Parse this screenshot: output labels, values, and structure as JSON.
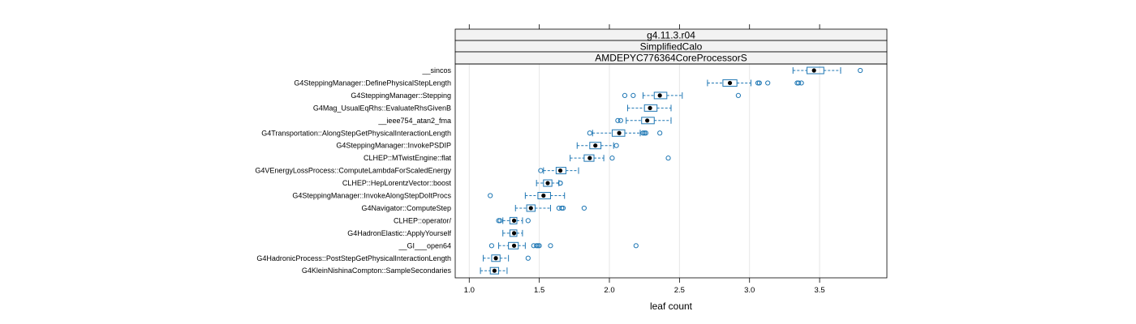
{
  "chart_data": {
    "type": "boxplot",
    "xlabel": "leaf count",
    "xlim": [
      0.9,
      3.98
    ],
    "x_ticks": [
      "1.0",
      "1.5",
      "2.0",
      "2.5",
      "3.0",
      "3.5"
    ],
    "x_tick_values": [
      1.0,
      1.5,
      2.0,
      2.5,
      3.0,
      3.5
    ],
    "grid": "vertical",
    "strips": [
      "g4.11.3.r04",
      "SimplifiedCalo",
      "AMDEPYC776364CoreProcessorS"
    ],
    "colors": {
      "box": "#1f77b4",
      "strip_fill": "#f2f2f2",
      "grid": "#e6e6e6",
      "median_dot": "#000000"
    },
    "categories": [
      "__sincos",
      "G4SteppingManager::DefinePhysicalStepLength",
      "G4SteppingManager::Stepping",
      "G4Mag_UsualEqRhs::EvaluateRhsGivenB",
      "__ieee754_atan2_fma",
      "G4Transportation::AlongStepGetPhysicalInteractionLength",
      "G4SteppingManager::InvokePSDIP",
      "CLHEP::MTwistEngine::flat",
      "G4VEnergyLossProcess::ComputeLambdaForScaledEnergy",
      "CLHEP::HepLorentzVector::boost",
      "G4SteppingManager::InvokeAlongStepDoItProcs",
      "G4Navigator::ComputeStep",
      "CLHEP::operator/",
      "G4HadronElastic::ApplyYourself",
      "__GI___open64",
      "G4HadronicProcess::PostStepGetPhysicalInteractionLength",
      "G4KleinNishinaCompton::SampleSecondaries"
    ],
    "boxes": [
      {
        "whisker_low": 3.31,
        "q1": 3.41,
        "median": 3.46,
        "q3": 3.53,
        "whisker_high": 3.65,
        "outliers": [
          3.79
        ]
      },
      {
        "whisker_low": 2.7,
        "q1": 2.81,
        "median": 2.86,
        "q3": 2.91,
        "whisker_high": 3.01,
        "outliers": [
          3.06,
          3.07,
          3.13,
          3.34,
          3.35,
          3.37
        ]
      },
      {
        "whisker_low": 2.24,
        "q1": 2.32,
        "median": 2.36,
        "q3": 2.41,
        "whisker_high": 2.52,
        "outliers": [
          2.11,
          2.17,
          2.92
        ]
      },
      {
        "whisker_low": 2.13,
        "q1": 2.25,
        "median": 2.29,
        "q3": 2.34,
        "whisker_high": 2.44,
        "outliers": []
      },
      {
        "whisker_low": 2.12,
        "q1": 2.23,
        "median": 2.27,
        "q3": 2.32,
        "whisker_high": 2.44,
        "outliers": [
          2.06,
          2.08
        ]
      },
      {
        "whisker_low": 1.88,
        "q1": 2.02,
        "median": 2.07,
        "q3": 2.11,
        "whisker_high": 2.22,
        "outliers": [
          1.86,
          2.24,
          2.25,
          2.26,
          2.36
        ]
      },
      {
        "whisker_low": 1.77,
        "q1": 1.86,
        "median": 1.9,
        "q3": 1.94,
        "whisker_high": 2.03,
        "outliers": [
          2.05
        ]
      },
      {
        "whisker_low": 1.72,
        "q1": 1.82,
        "median": 1.86,
        "q3": 1.89,
        "whisker_high": 1.96,
        "outliers": [
          2.02,
          2.42
        ]
      },
      {
        "whisker_low": 1.53,
        "q1": 1.62,
        "median": 1.65,
        "q3": 1.69,
        "whisker_high": 1.78,
        "outliers": [
          1.51
        ]
      },
      {
        "whisker_low": 1.48,
        "q1": 1.53,
        "median": 1.56,
        "q3": 1.59,
        "whisker_high": 1.64,
        "outliers": [
          1.65,
          1.65
        ]
      },
      {
        "whisker_low": 1.4,
        "q1": 1.49,
        "median": 1.53,
        "q3": 1.58,
        "whisker_high": 1.68,
        "outliers": [
          1.15
        ]
      },
      {
        "whisker_low": 1.33,
        "q1": 1.41,
        "median": 1.44,
        "q3": 1.47,
        "whisker_high": 1.58,
        "outliers": [
          1.64,
          1.66,
          1.67,
          1.82
        ]
      },
      {
        "whisker_low": 1.24,
        "q1": 1.29,
        "median": 1.32,
        "q3": 1.34,
        "whisker_high": 1.38,
        "outliers": [
          1.21,
          1.22,
          1.42
        ]
      },
      {
        "whisker_low": 1.24,
        "q1": 1.29,
        "median": 1.32,
        "q3": 1.34,
        "whisker_high": 1.38,
        "outliers": []
      },
      {
        "whisker_low": 1.21,
        "q1": 1.28,
        "median": 1.32,
        "q3": 1.35,
        "whisker_high": 1.4,
        "outliers": [
          1.16,
          1.46,
          1.48,
          1.49,
          1.5,
          1.58,
          2.19
        ]
      },
      {
        "whisker_low": 1.1,
        "q1": 1.16,
        "median": 1.19,
        "q3": 1.22,
        "whisker_high": 1.28,
        "outliers": [
          1.42
        ]
      },
      {
        "whisker_low": 1.08,
        "q1": 1.15,
        "median": 1.18,
        "q3": 1.21,
        "whisker_high": 1.27,
        "outliers": []
      }
    ]
  }
}
